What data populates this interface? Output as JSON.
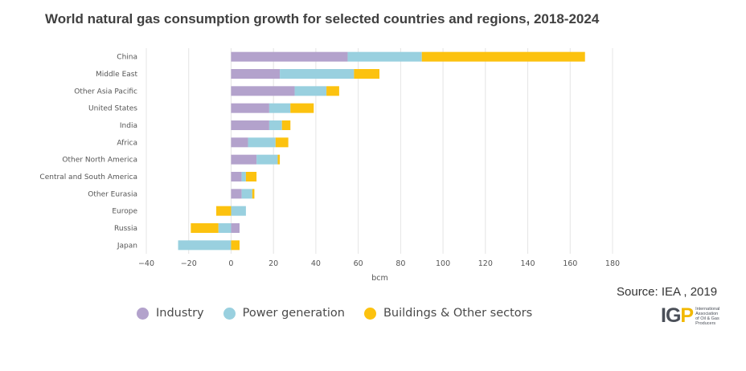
{
  "title": "World natural gas consumption growth for selected countries and regions, 2018-2024",
  "source": "Source: IEA , 2019",
  "legend": [
    {
      "label": "Industry",
      "color": "#b3a2cc"
    },
    {
      "label": "Power generation",
      "color": "#99d0df"
    },
    {
      "label": "Buildings & Other sectors",
      "color": "#fcc20f"
    }
  ],
  "logo": {
    "mark_left": "IG",
    "mark_right": "P",
    "lines": [
      "International",
      "Association",
      "of Oil & Gas",
      "Producers"
    ]
  },
  "chart_data": {
    "type": "bar",
    "orientation": "horizontal",
    "stacked": true,
    "xlabel": "bcm",
    "xlim": [
      -40,
      180
    ],
    "xticks": [
      -40,
      -20,
      0,
      20,
      40,
      60,
      80,
      100,
      120,
      140,
      160,
      180
    ],
    "grid": true,
    "categories": [
      "China",
      "Middle East",
      "Other Asia Pacific",
      "United States",
      "India",
      "Africa",
      "Other North America",
      "Central and South America",
      "Other Eurasia",
      "Europe",
      "Russia",
      "Japan"
    ],
    "series": [
      {
        "name": "Industry",
        "color": "#b3a2cc",
        "values": [
          55,
          23,
          30,
          18,
          18,
          8,
          12,
          5,
          5,
          0,
          4,
          0
        ]
      },
      {
        "name": "Power generation",
        "color": "#99d0df",
        "values": [
          35,
          35,
          15,
          10,
          6,
          13,
          10,
          2,
          5,
          7,
          -6,
          -25
        ]
      },
      {
        "name": "Buildings & Other sectors",
        "color": "#fcc20f",
        "values": [
          77,
          12,
          6,
          11,
          4,
          6,
          1,
          5,
          1,
          -7,
          -13,
          4
        ]
      }
    ]
  }
}
